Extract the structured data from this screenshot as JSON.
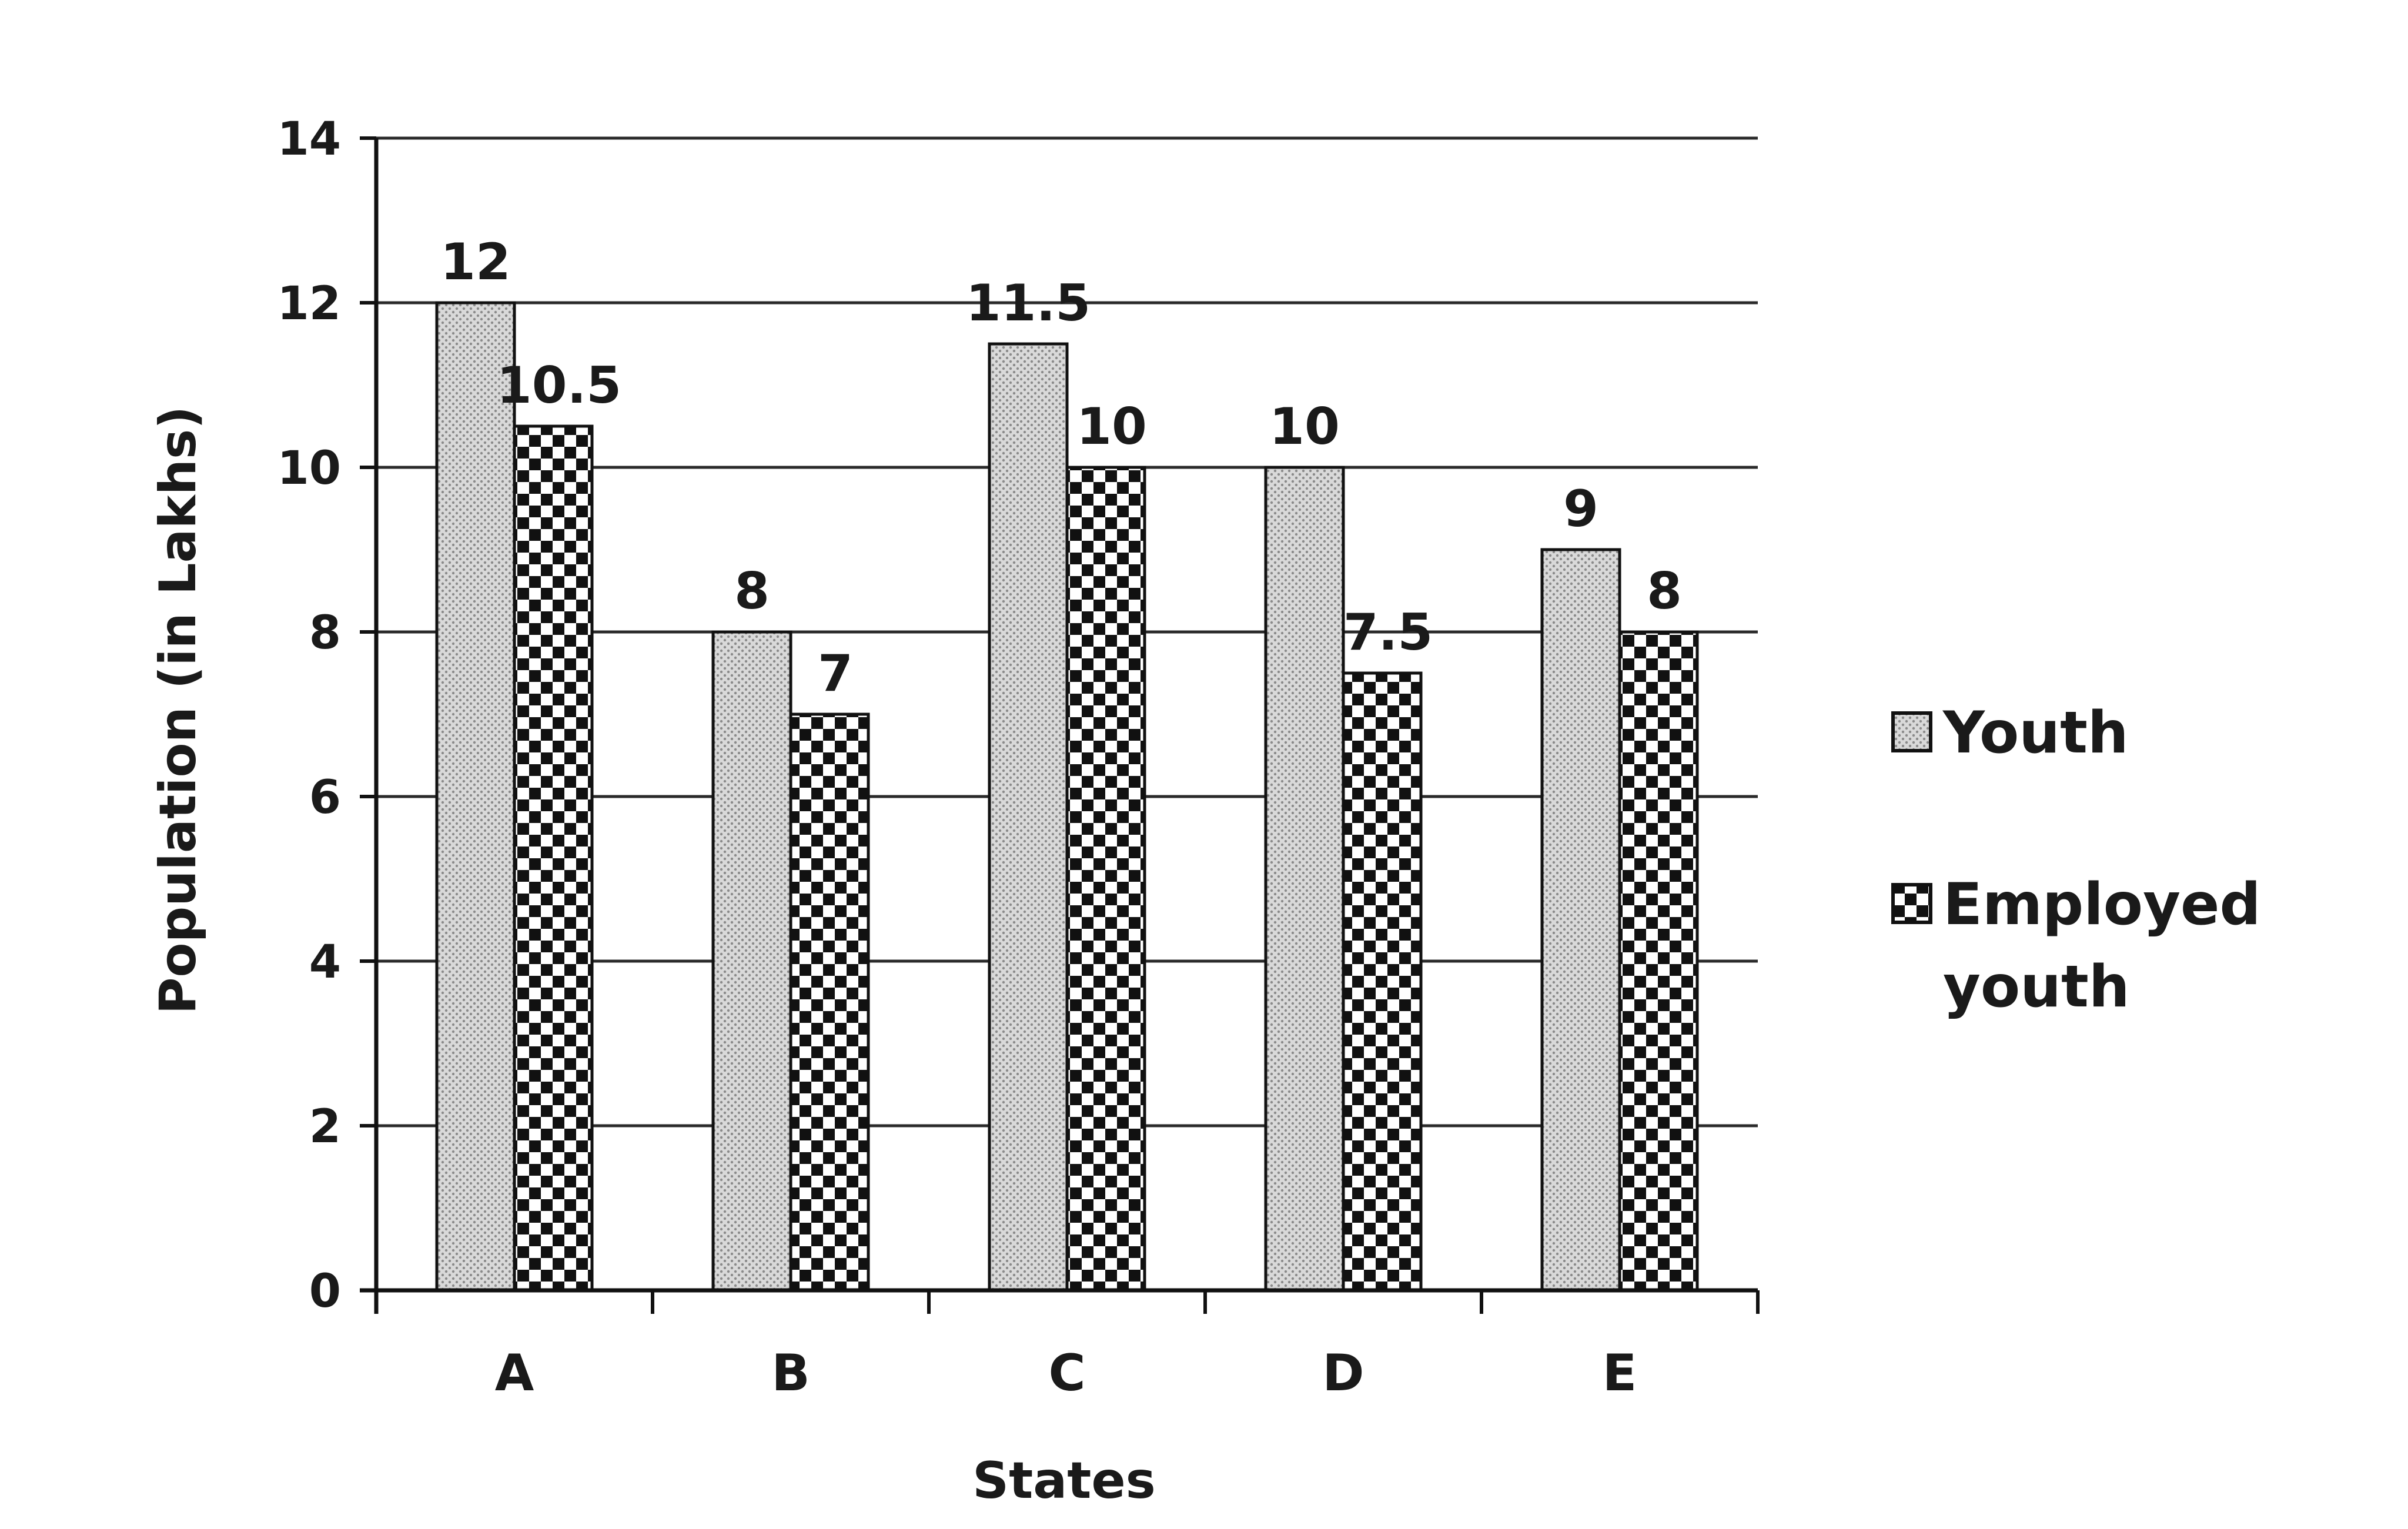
{
  "chart_data": {
    "type": "bar",
    "title": "",
    "xlabel": "States",
    "ylabel": "Population (in Lakhs)",
    "categories": [
      "A",
      "B",
      "C",
      "D",
      "E"
    ],
    "ylim": [
      0,
      14
    ],
    "yticks": [
      0,
      2,
      4,
      6,
      8,
      10,
      12,
      14
    ],
    "grid": true,
    "legend_position": "right",
    "series": [
      {
        "name": "Youth",
        "values": [
          12,
          8,
          11.5,
          10,
          9
        ],
        "labels": [
          "12",
          "8",
          "11.5",
          "10",
          "9"
        ],
        "pattern": "dotted-gray"
      },
      {
        "name": "Employed youth",
        "values": [
          10.5,
          7,
          10,
          7.5,
          8
        ],
        "labels": [
          "10.5",
          "7",
          "10",
          "7.5",
          "8"
        ],
        "pattern": "checkerboard"
      }
    ],
    "legend": {
      "youth_label": "Youth",
      "employed_label_line1": "Employed",
      "employed_label_line2": "youth"
    }
  }
}
